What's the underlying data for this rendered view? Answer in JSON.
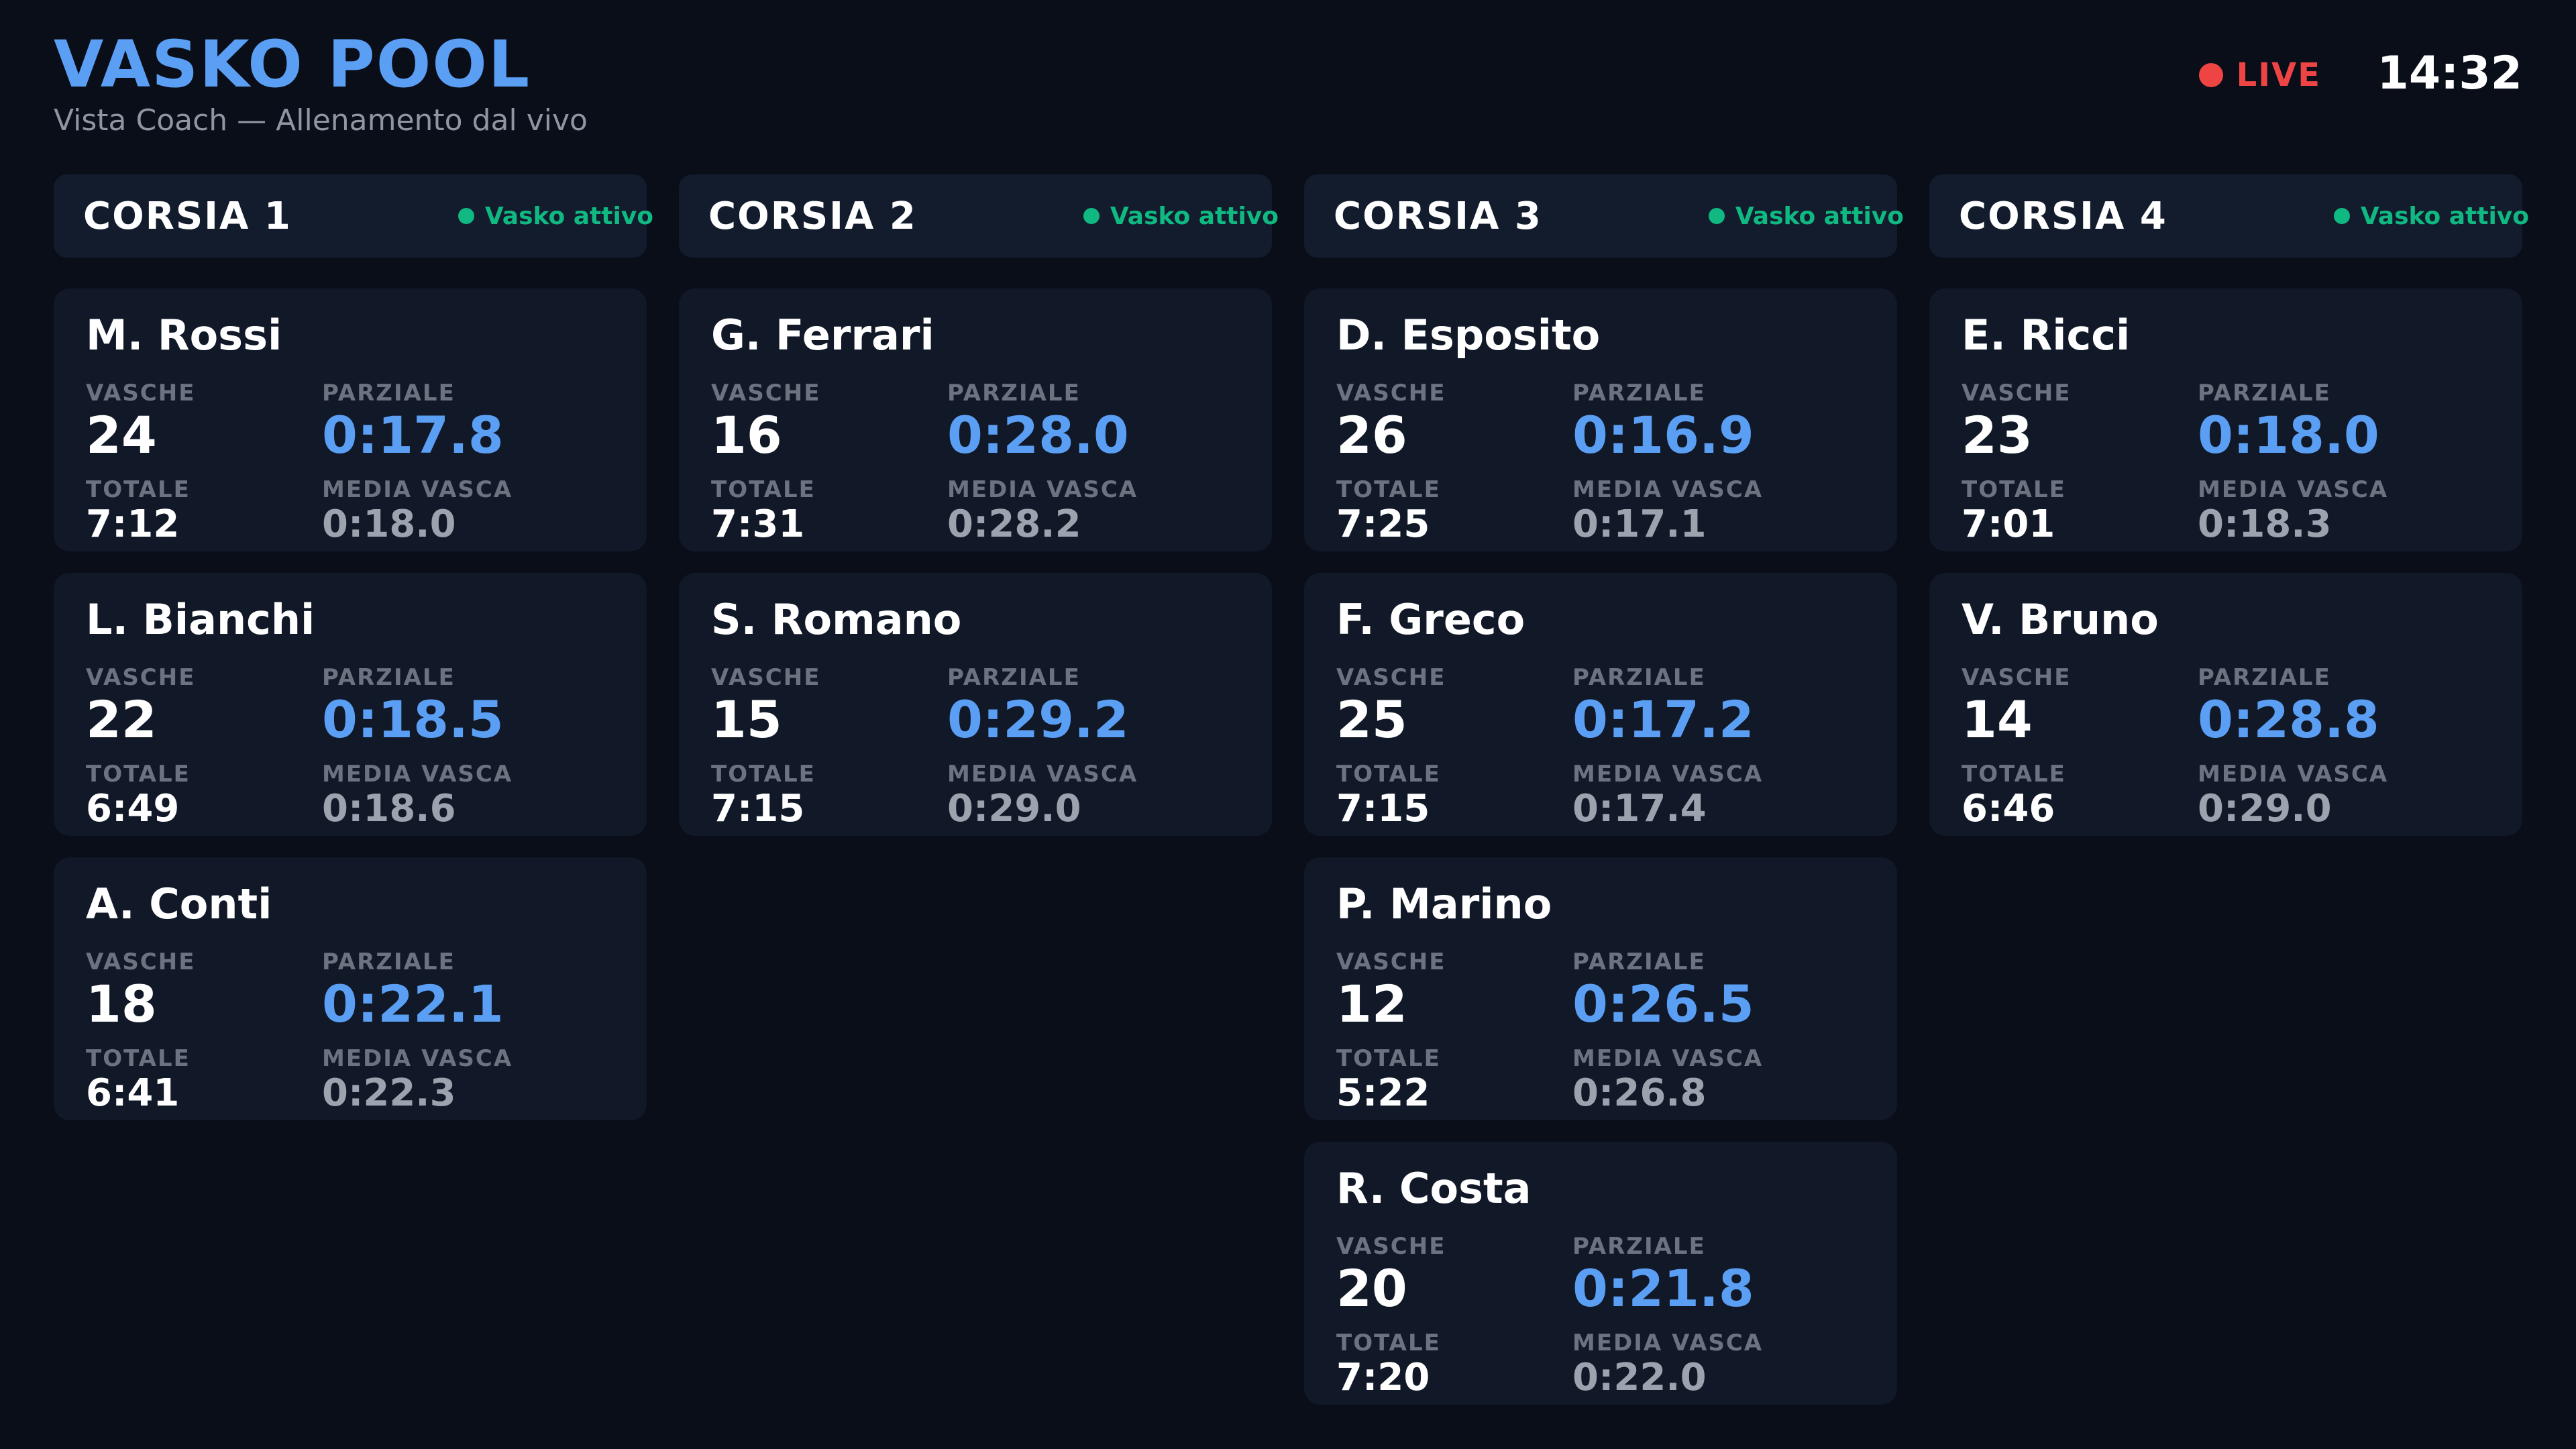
{
  "header": {
    "title": "VASKO POOL",
    "subtitle": "Vista Coach — Allenamento dal vivo",
    "live_label": "LIVE",
    "clock": "14:32"
  },
  "colors": {
    "accent": "#5b9ff5",
    "live": "#ef4444",
    "active": "#10b981",
    "background": "#0a0e19",
    "card": "#111827"
  },
  "stat_labels": {
    "laps": "VASCHE",
    "split": "PARZIALE",
    "total": "TOTALE",
    "avg": "MEDIA VASCA"
  },
  "lanes": [
    {
      "title": "CORSIA 1",
      "status": "Vasko attivo",
      "swimmers": [
        {
          "name": "M. Rossi",
          "laps": "24",
          "split": "0:17.8",
          "total": "7:12",
          "avg": "0:18.0"
        },
        {
          "name": "L. Bianchi",
          "laps": "22",
          "split": "0:18.5",
          "total": "6:49",
          "avg": "0:18.6"
        },
        {
          "name": "A. Conti",
          "laps": "18",
          "split": "0:22.1",
          "total": "6:41",
          "avg": "0:22.3"
        }
      ]
    },
    {
      "title": "CORSIA 2",
      "status": "Vasko attivo",
      "swimmers": [
        {
          "name": "G. Ferrari",
          "laps": "16",
          "split": "0:28.0",
          "total": "7:31",
          "avg": "0:28.2"
        },
        {
          "name": "S. Romano",
          "laps": "15",
          "split": "0:29.2",
          "total": "7:15",
          "avg": "0:29.0"
        }
      ]
    },
    {
      "title": "CORSIA 3",
      "status": "Vasko attivo",
      "swimmers": [
        {
          "name": "D. Esposito",
          "laps": "26",
          "split": "0:16.9",
          "total": "7:25",
          "avg": "0:17.1"
        },
        {
          "name": "F. Greco",
          "laps": "25",
          "split": "0:17.2",
          "total": "7:15",
          "avg": "0:17.4"
        },
        {
          "name": "P. Marino",
          "laps": "12",
          "split": "0:26.5",
          "total": "5:22",
          "avg": "0:26.8"
        },
        {
          "name": "R. Costa",
          "laps": "20",
          "split": "0:21.8",
          "total": "7:20",
          "avg": "0:22.0"
        }
      ]
    },
    {
      "title": "CORSIA 4",
      "status": "Vasko attivo",
      "swimmers": [
        {
          "name": "E. Ricci",
          "laps": "23",
          "split": "0:18.0",
          "total": "7:01",
          "avg": "0:18.3"
        },
        {
          "name": "V. Bruno",
          "laps": "14",
          "split": "0:28.8",
          "total": "6:46",
          "avg": "0:29.0"
        }
      ]
    }
  ]
}
